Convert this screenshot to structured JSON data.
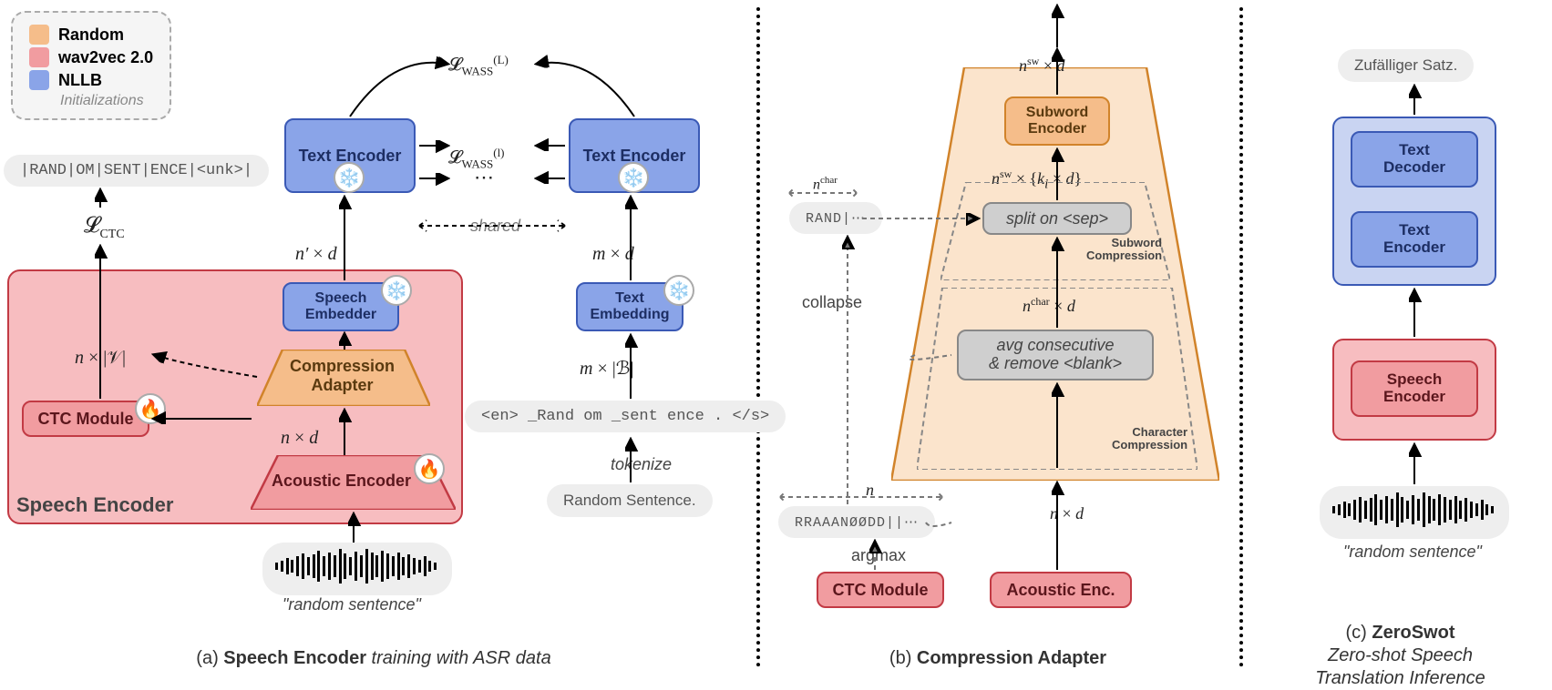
{
  "colors": {
    "orange_fill": "#f5bd8a",
    "orange_border": "#d1832a",
    "red_fill": "#f19ca0",
    "red_border": "#c23a44",
    "blue_fill": "#8aa4e8",
    "blue_border": "#3a59b5",
    "grey_fill": "#cfcfcf",
    "grey_border": "#888888",
    "panel_red": "#f7bdc0",
    "panel_orange": "#fbe4cc",
    "bg": "#ffffff",
    "text": "#333333"
  },
  "legend": {
    "items": [
      {
        "color": "#f5bd8a",
        "label": "Random"
      },
      {
        "color": "#f19ca0",
        "label": "wav2vec 2.0"
      },
      {
        "color": "#8aa4e8",
        "label": "NLLB"
      }
    ],
    "caption": "Initializations"
  },
  "panel_a": {
    "caption_bold": "Speech Encoder",
    "caption_rest": " training with ASR data",
    "prefix": "(a) ",
    "ctc_output_pill": "|RAND|OM|SENT|ENCE|<unk>|",
    "loss_ctc": "ℒ_CTC",
    "loss_wass_L": "ℒ_WASS^(L)",
    "loss_wass_l": "ℒ_WASS^(l)",
    "shared": "shared",
    "speech_encoder_title": "Speech Encoder",
    "ctc_module": "CTC Module",
    "acoustic_encoder": "Acoustic Encoder",
    "compression_adapter": "Compression\nAdapter",
    "speech_embedder": "Speech\nEmbedder",
    "text_encoder": "Text Encoder",
    "text_embedding": "Text\nEmbedding",
    "dims": {
      "n_x_V": "n × |𝒱|",
      "n_x_d": "n × d",
      "np_x_d": "n′ × d",
      "m_x_d": "m × d",
      "m_x_B": "m × |ℬ|"
    },
    "token_pill": "<en> _Rand om _sent ence . </s>",
    "tokenize": "tokenize",
    "random_sentence_text": "Random Sentence.",
    "random_sentence_quote": "\"random sentence\"",
    "ellipsis": "⋯"
  },
  "panel_b": {
    "caption_bold": "Compression Adapter",
    "prefix": "(b) ",
    "subword_encoder": "Subword\nEncoder",
    "split_sep": "split on <sep>",
    "avg_remove": "avg consecutive\n& remove <blank>",
    "subword_comp": "Subword\nCompression",
    "char_comp": "Character\nCompression",
    "ctc_module": "CTC Module",
    "acoustic_enc": "Acoustic Enc.",
    "argmax": "argmax",
    "collapse": "collapse",
    "dims": {
      "nsw_d": "n^sw × d",
      "nsw_ki_d": "n^sw × {k_i × d}",
      "nchar_d": "n^char × d",
      "n_x_d": "n × d",
      "n": "n",
      "nchar": "n^char"
    },
    "chars_pill": "RRAAANØØDD||⋯",
    "chars_collapsed": "RAND|⋯"
  },
  "panel_c": {
    "caption_bold": "ZeroSwot",
    "caption_rest": "Zero-shot Speech\nTranslation Inference",
    "prefix": "(c) ",
    "output": "Zufälliger Satz.",
    "text_decoder": "Text\nDecoder",
    "text_encoder": "Text\nEncoder",
    "speech_encoder": "Speech\nEncoder",
    "random_sentence_quote": "\"random sentence\""
  },
  "icons": {
    "fire": "🔥",
    "snow": "❄️"
  },
  "waveform_heights": [
    8,
    12,
    18,
    14,
    22,
    28,
    20,
    26,
    34,
    22,
    30,
    24,
    38,
    28,
    20,
    32,
    24,
    38,
    30,
    24,
    34,
    28,
    22,
    30,
    20,
    26,
    18,
    14,
    22,
    12,
    8
  ]
}
